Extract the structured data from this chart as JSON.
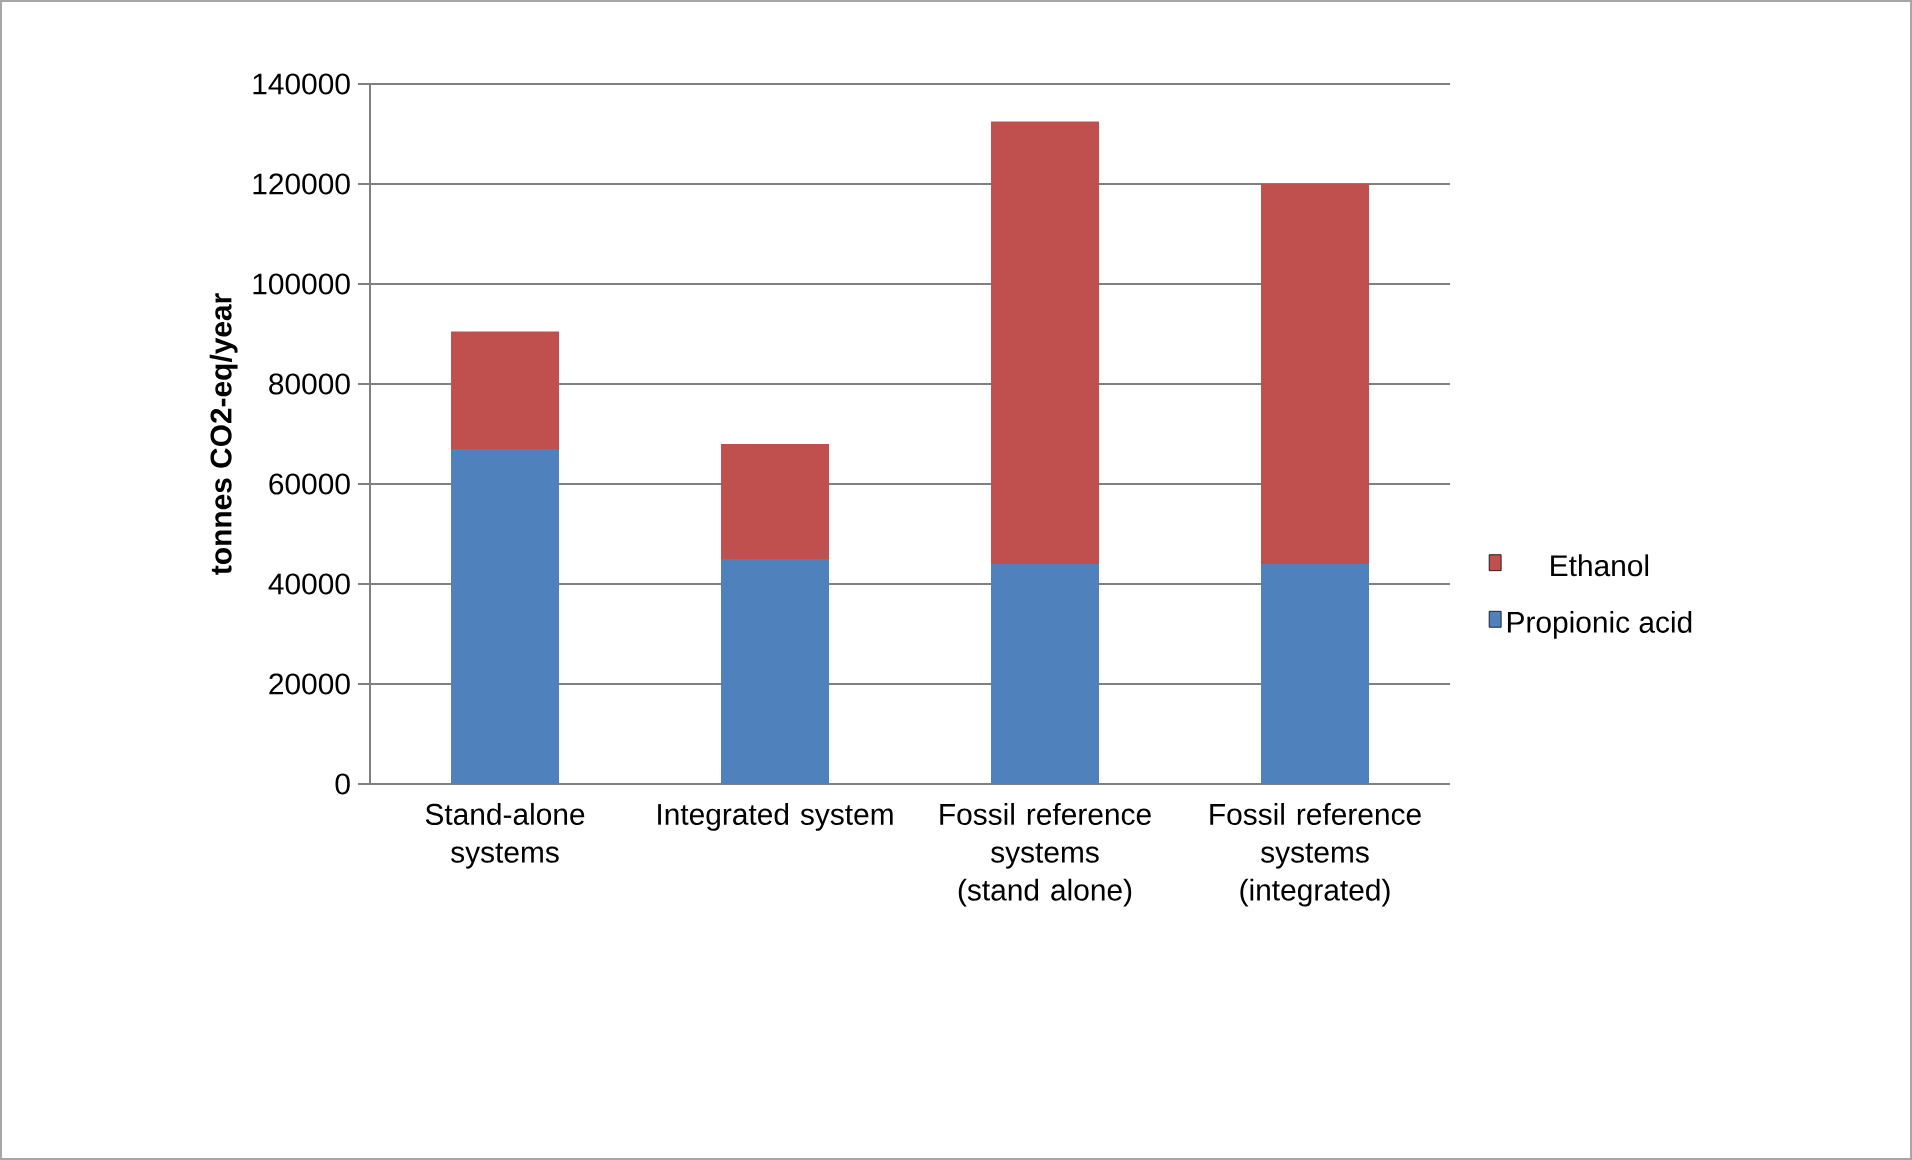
{
  "chart_data": {
    "type": "bar",
    "stacked": true,
    "ylabel": "tonnes CO2-eq/year",
    "categories": [
      "Stand-alone systems",
      "Integrated system",
      "Fossil reference systems (stand alone)",
      "Fossil reference systems (integrated)"
    ],
    "series": [
      {
        "name": "Propionic acid",
        "color": "#4f81bd",
        "values": [
          67000,
          45000,
          44000,
          44000
        ]
      },
      {
        "name": "Ethanol",
        "color": "#c0504d",
        "values": [
          23500,
          23000,
          88500,
          76000
        ]
      }
    ],
    "ylim": [
      0,
      140000
    ],
    "yticks": [
      0,
      20000,
      40000,
      60000,
      80000,
      100000,
      120000,
      140000
    ],
    "grid": "y",
    "legend": "right"
  }
}
